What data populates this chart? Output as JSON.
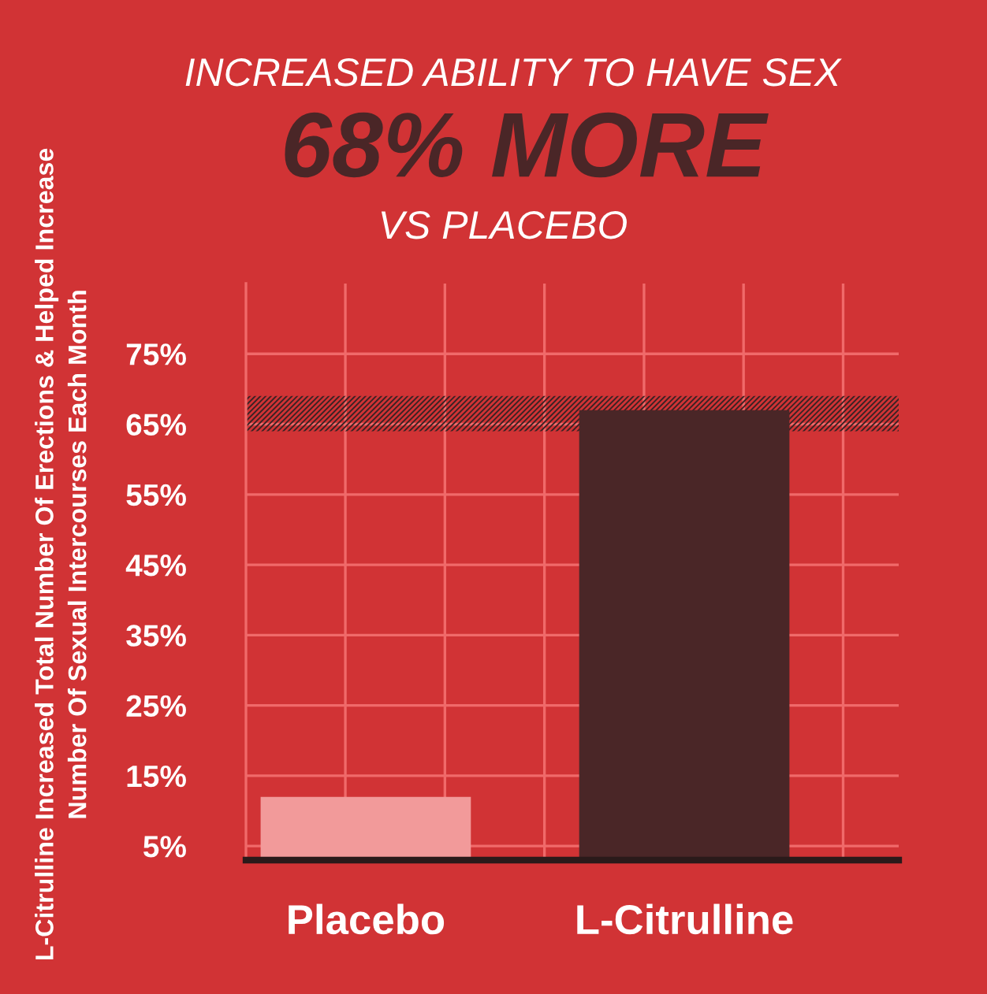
{
  "chart_data": {
    "type": "bar",
    "title": "INCREASED ABILITY TO HAVE SEX",
    "subtitle": "68% MORE",
    "annotations": [
      "VS PLACEBO"
    ],
    "ylabel": "L-Citrulline Increased Total Number Of Erections & Helped Increase\nNumber Of Sexual Intercourses Each Month",
    "categories": [
      "Placebo",
      "L-Citrulline"
    ],
    "values": [
      12,
      67
    ],
    "colors": [
      "#f29a9a",
      "#4a2627"
    ],
    "ylim": [
      3,
      85
    ],
    "yticks": [
      {
        "value": 5,
        "label": "5%"
      },
      {
        "value": 15,
        "label": "15%"
      },
      {
        "value": 25,
        "label": "25%"
      },
      {
        "value": 35,
        "label": "35%"
      },
      {
        "value": 45,
        "label": "45%"
      },
      {
        "value": 55,
        "label": "55%"
      },
      {
        "value": 65,
        "label": "65%"
      },
      {
        "value": 75,
        "label": "75%"
      }
    ],
    "grid": true,
    "bands": [
      {
        "axis": "y",
        "from": 64,
        "to": 69,
        "color": "#3a2224"
      }
    ]
  }
}
